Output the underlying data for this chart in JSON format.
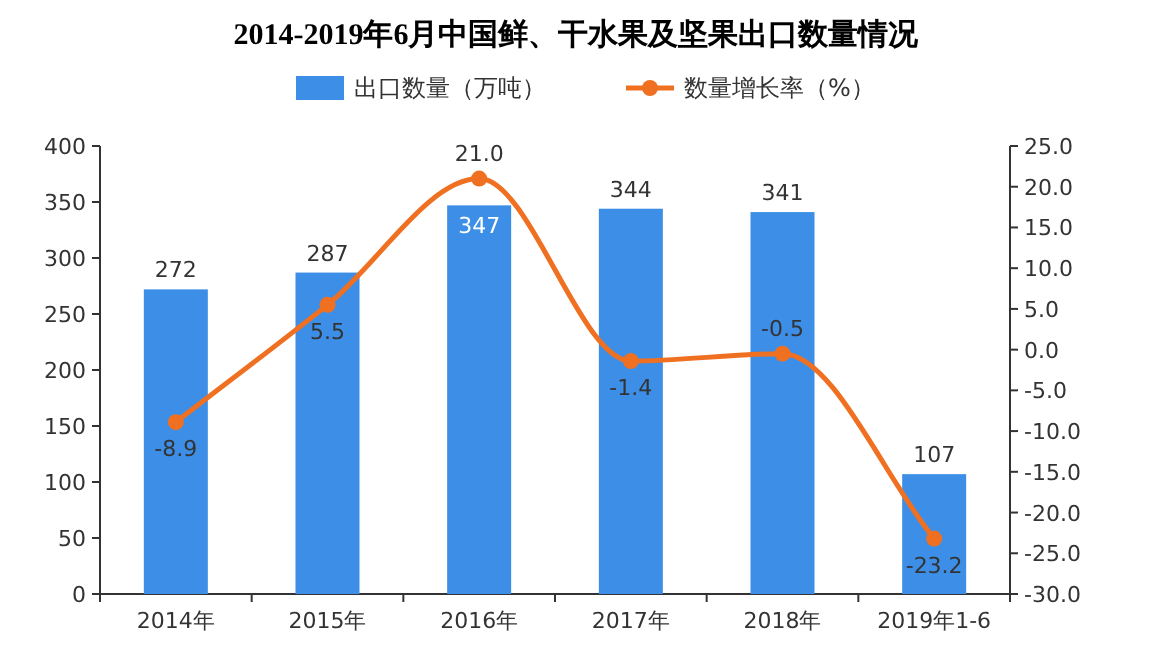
{
  "chart_data": {
    "type": "bar",
    "title": "2014-2019年6月中国鲜、干水果及坚果出口数量情况",
    "categories": [
      "2014年",
      "2015年",
      "2016年",
      "2017年",
      "2018年",
      "2019年1-6"
    ],
    "series": [
      {
        "name": "出口数量（万吨）",
        "color": "#3d8ee6",
        "values": [
          272,
          287,
          347,
          344,
          341,
          107
        ]
      },
      {
        "name": "数量增长率（%）",
        "type": "line",
        "axis": "y2",
        "color": "#f07022",
        "marker": "circle",
        "values": [
          -8.9,
          5.5,
          21.0,
          -1.4,
          -0.5,
          -23.2
        ],
        "value_labels": [
          "-8.9",
          "5.5",
          "21.0",
          "-1.4",
          "-0.5",
          "-23.2"
        ]
      }
    ],
    "ylim": [
      0,
      400
    ],
    "yticks": [
      0,
      50,
      100,
      150,
      200,
      250,
      300,
      350,
      400
    ],
    "y2lim": [
      -30,
      25
    ],
    "y2ticks": [
      {
        "value": -30,
        "label": "-30.0"
      },
      {
        "value": -25,
        "label": "-25.0"
      },
      {
        "value": -20,
        "label": "-20.0"
      },
      {
        "value": -15,
        "label": "-15.0"
      },
      {
        "value": -10,
        "label": "-10.0"
      },
      {
        "value": -5,
        "label": "-5.0"
      },
      {
        "value": 0,
        "label": "0.0"
      },
      {
        "value": 5,
        "label": "5.0"
      },
      {
        "value": 10,
        "label": "10.0"
      },
      {
        "value": 15,
        "label": "15.0"
      },
      {
        "value": 20,
        "label": "20.0"
      },
      {
        "value": 25,
        "label": "25.0"
      }
    ],
    "data_labels": true,
    "legend": "top",
    "grid": false
  }
}
